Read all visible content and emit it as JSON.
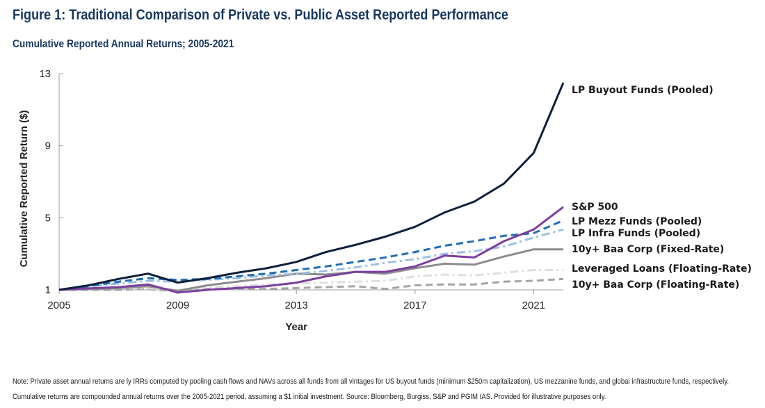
{
  "header": {
    "title": "Figure 1: Traditional  Comparison of Private vs. Public Asset Reported Performance",
    "subtitle": "Cumulative Reported Annual Returns; 2005-2021"
  },
  "note": {
    "line1": "Note:  Private asset annual returns are ly IRRs computed by pooling cash flows and NAVs across all funds from all vintages for US buyout funds (minimum $250m capitalization), US mezzanine funds, and global infrastructure funds, respectively.",
    "line2": "Cumulative returns are compounded annual returns over the 2005-2021 period, assuming a $1 initial investment. Source: Bloomberg, Burgiss, S&P and PGIM IAS. Provided for illustrative purposes only."
  },
  "chart_data": {
    "type": "line",
    "xlabel": "Year",
    "ylabel": "Cumulative Reported Return ($)",
    "xlim": [
      2005,
      2022
    ],
    "ylim": [
      1,
      13
    ],
    "xticks": [
      2005,
      2009,
      2013,
      2017,
      2021
    ],
    "yticks": [
      1,
      5,
      9,
      13
    ],
    "grid": false,
    "legend": "right (labels at line ends)",
    "x": [
      2005,
      2006,
      2007,
      2008,
      2009,
      2010,
      2011,
      2012,
      2013,
      2014,
      2015,
      2016,
      2017,
      2018,
      2019,
      2020,
      2021,
      2022
    ],
    "series": [
      {
        "name": "LP Buyout Funds (Pooled)",
        "color": "#0d1f3c",
        "dash": "solid",
        "values": [
          1.0,
          1.25,
          1.6,
          1.9,
          1.4,
          1.65,
          1.95,
          2.2,
          2.55,
          3.1,
          3.5,
          3.95,
          4.5,
          5.3,
          5.9,
          6.9,
          8.6,
          12.5
        ]
      },
      {
        "name": "S&P 500",
        "color": "#7b3f9e",
        "dash": "solid",
        "values": [
          1.0,
          1.08,
          1.15,
          1.3,
          0.85,
          1.0,
          1.1,
          1.2,
          1.4,
          1.75,
          2.0,
          2.0,
          2.3,
          2.9,
          2.8,
          3.7,
          4.35,
          5.6
        ]
      },
      {
        "name": "LP Mezz Funds (Pooled)",
        "color": "#1f6db3",
        "dash": "dash",
        "values": [
          1.0,
          1.2,
          1.45,
          1.65,
          1.55,
          1.6,
          1.75,
          1.9,
          2.1,
          2.3,
          2.55,
          2.8,
          3.1,
          3.45,
          3.7,
          4.0,
          4.15,
          4.85
        ]
      },
      {
        "name": "LP Infra Funds (Pooled)",
        "color": "#9cc0e4",
        "dash": "dashdot",
        "values": [
          1.0,
          1.2,
          1.35,
          1.5,
          1.45,
          1.55,
          1.65,
          1.8,
          1.9,
          2.05,
          2.25,
          2.5,
          2.7,
          3.0,
          3.15,
          3.4,
          3.9,
          4.35
        ]
      },
      {
        "name": "10y+ Baa Corp (Fixed-Rate)",
        "color": "#8c8c8c",
        "dash": "solid",
        "values": [
          1.0,
          1.05,
          1.1,
          1.2,
          0.95,
          1.25,
          1.45,
          1.65,
          1.9,
          1.85,
          2.0,
          1.9,
          2.2,
          2.45,
          2.4,
          2.85,
          3.25,
          3.25
        ]
      },
      {
        "name": "Leveraged Loans (Floating-Rate)",
        "color": "#dedede",
        "dash": "dashdot",
        "values": [
          1.0,
          1.05,
          1.1,
          1.1,
          0.95,
          1.15,
          1.2,
          1.3,
          1.35,
          1.4,
          1.45,
          1.5,
          1.75,
          1.85,
          1.8,
          1.95,
          2.1,
          2.1
        ]
      },
      {
        "name": "10y+ Baa Corp (Floating-Rate)",
        "color": "#a3a3a3",
        "dash": "dash",
        "values": [
          1.0,
          1.0,
          1.0,
          1.05,
          0.9,
          1.05,
          1.05,
          1.05,
          1.1,
          1.15,
          1.2,
          1.05,
          1.25,
          1.3,
          1.3,
          1.45,
          1.5,
          1.6
        ]
      }
    ],
    "label_order": [
      "LP Buyout Funds (Pooled)",
      "S&P 500",
      "LP Mezz Funds (Pooled)",
      "LP Infra Funds (Pooled)",
      "10y+ Baa Corp (Fixed-Rate)",
      "Leveraged Loans (Floating-Rate)",
      "10y+ Baa Corp (Floating-Rate)"
    ]
  }
}
